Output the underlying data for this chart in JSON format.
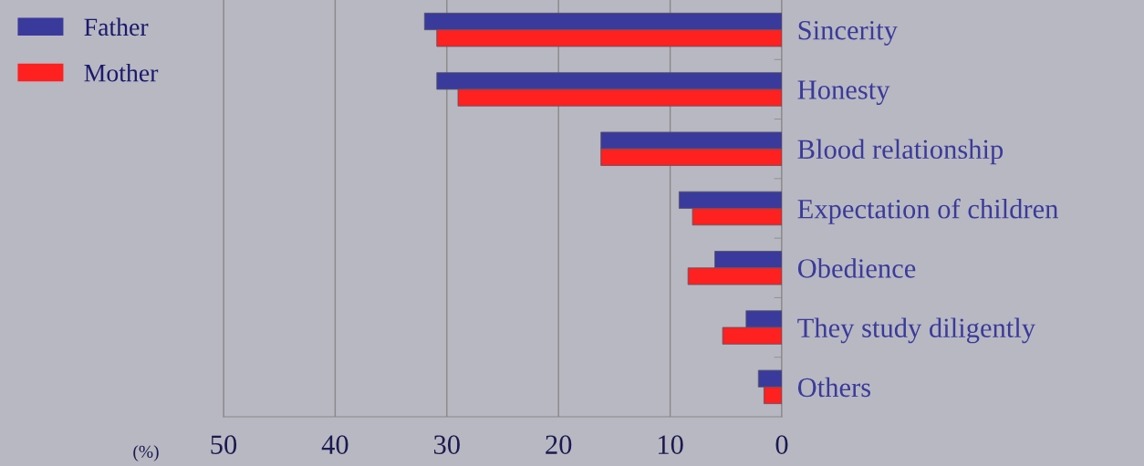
{
  "chart_data": {
    "type": "bar",
    "orientation": "horizontal",
    "categories": [
      "Sincerity",
      "Honesty",
      "Blood relationship",
      "Expectation of children",
      "Obedience",
      "They study diligently",
      "Others"
    ],
    "series": [
      {
        "name": "Father",
        "color": "#3a3a9c",
        "values": [
          32.0,
          30.9,
          16.2,
          9.2,
          6.0,
          3.2,
          2.1
        ]
      },
      {
        "name": "Mother",
        "color": "#ff2020",
        "values": [
          30.9,
          29.0,
          16.2,
          8.0,
          8.4,
          5.3,
          1.6
        ]
      }
    ],
    "xlim": [
      50,
      0
    ],
    "xticks": [
      50,
      40,
      30,
      20,
      10,
      0
    ],
    "grid": "x",
    "legend": "top left",
    "annotations": [
      "(%)"
    ]
  }
}
